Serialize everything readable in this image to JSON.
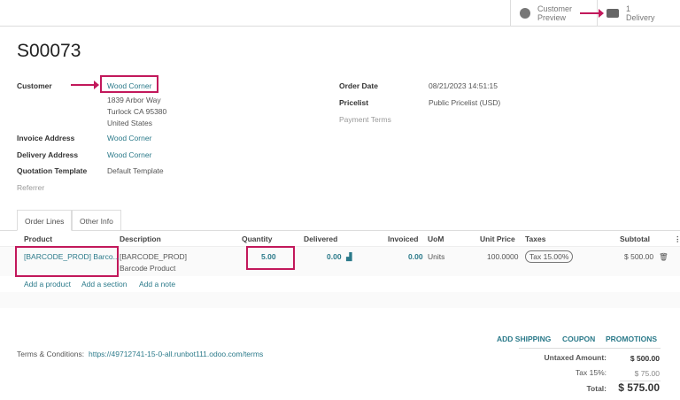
{
  "topbar": {
    "preview_l1": "Customer",
    "preview_l2": "Preview",
    "delivery_count": "1",
    "delivery_label": "Delivery"
  },
  "order": {
    "name": "S00073"
  },
  "fields": {
    "customer_label": "Customer",
    "customer": "Wood Corner",
    "addr1": "1839 Arbor Way",
    "addr2": "Turlock CA 95380",
    "addr3": "United States",
    "invoice_label": "Invoice Address",
    "invoice": "Wood Corner",
    "delivery_label": "Delivery Address",
    "delivery": "Wood Corner",
    "template_label": "Quotation Template",
    "template": "Default Template",
    "referrer_label": "Referrer",
    "date_label": "Order Date",
    "date": "08/21/2023 14:51:15",
    "pricelist_label": "Pricelist",
    "pricelist": "Public Pricelist (USD)",
    "terms_label": "Payment Terms"
  },
  "tabs": [
    {
      "label": "Order Lines"
    },
    {
      "label": "Other Info"
    }
  ],
  "columns": [
    "Product",
    "Description",
    "Quantity",
    "Delivered",
    "Invoiced",
    "UoM",
    "Unit Price",
    "Taxes",
    "Subtotal"
  ],
  "line": {
    "product": "[BARCODE_PROD] Barco...",
    "desc1": "[BARCODE_PROD]",
    "desc2": "Barcode Product",
    "quantity": "5.00",
    "delivered": "0.00",
    "invoiced": "0.00",
    "uom": "Units",
    "unit_price": "100.0000",
    "tax": "Tax 15.00%",
    "subtotal": "$ 500.00"
  },
  "actions": {
    "add_product": "Add a product",
    "add_section": "Add a section",
    "add_note": "Add a note"
  },
  "terms": {
    "label": "Terms & Conditions:",
    "url": "https://49712741-15-0-all.runbot111.odoo.com/terms"
  },
  "buttons": {
    "shipping": "ADD SHIPPING",
    "coupon": "COUPON",
    "promotions": "PROMOTIONS"
  },
  "totals": {
    "untaxed_label": "Untaxed Amount:",
    "untaxed": "$ 500.00",
    "tax_label": "Tax 15%:",
    "tax": "$ 75.00",
    "total_label": "Total:",
    "total": "$ 575.00"
  },
  "colors": {
    "accent": "#2b7a8a",
    "highlight": "#c2185b"
  }
}
